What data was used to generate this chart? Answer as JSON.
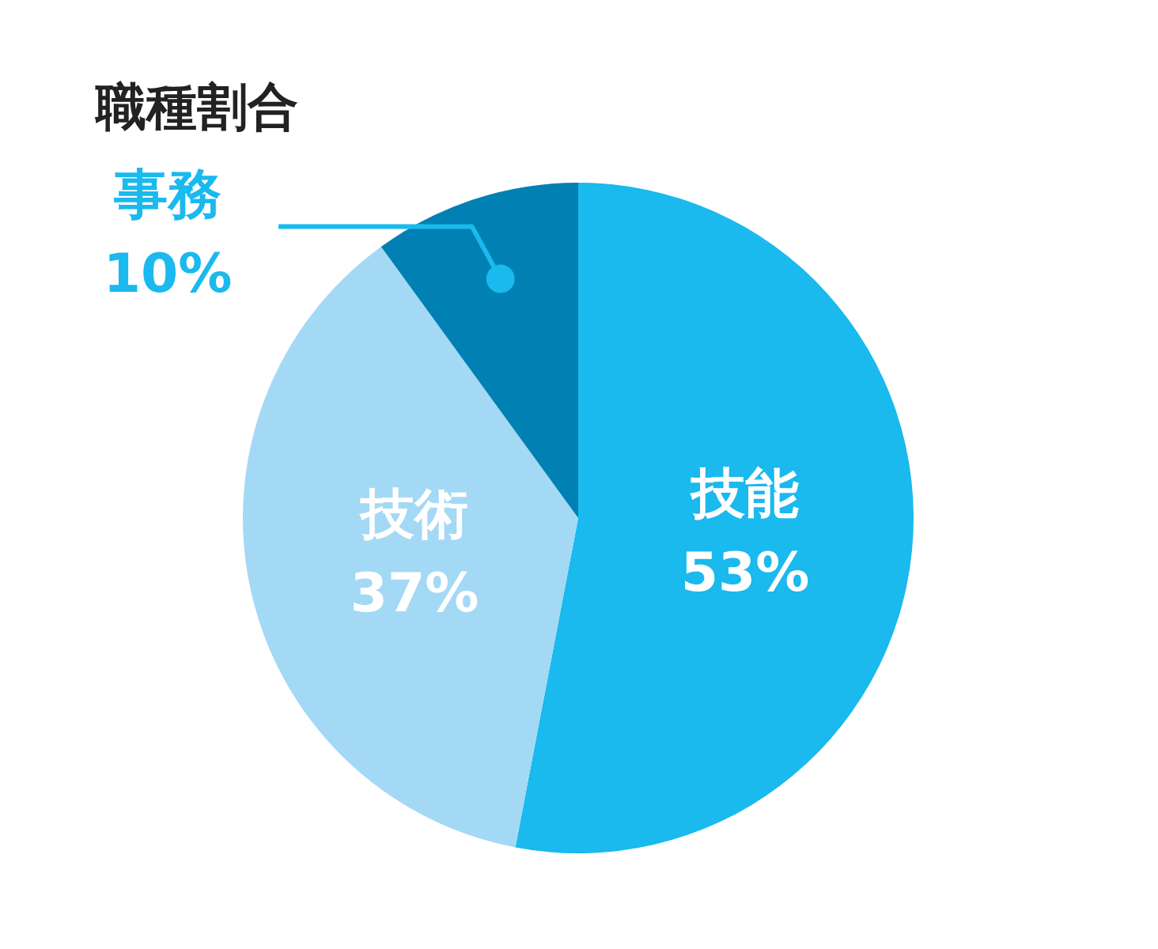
{
  "chart_data": {
    "type": "pie",
    "title": "職種割合",
    "categories": [
      "技能",
      "技術",
      "事務"
    ],
    "values": [
      53,
      37,
      10
    ],
    "colors": [
      "#1ab9ee",
      "#a3d9f5",
      "#0080b3"
    ],
    "value_labels": [
      "53%",
      "37%",
      "10%"
    ]
  }
}
